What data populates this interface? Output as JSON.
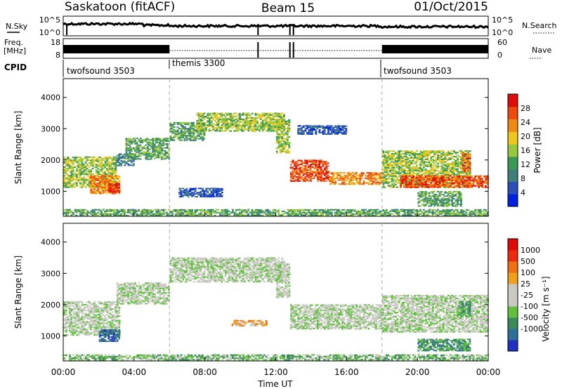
{
  "header": {
    "station": "Saskatoon (fitACF)",
    "beam": "Beam 15",
    "date": "01/Oct/2015"
  },
  "strip_nsky": {
    "left_label": "N.Sky",
    "right_label": "N.Search",
    "left_ticks": [
      "10^5",
      "10^0"
    ],
    "right_ticks": [
      "10^5",
      "10^0"
    ]
  },
  "strip_freq": {
    "left_label_1": "Freq.",
    "left_label_2": "[MHz]",
    "right_label": "Nave",
    "left_ticks": [
      "18",
      "8"
    ],
    "right_ticks": [
      "60",
      "0"
    ]
  },
  "cpid": {
    "label": "CPID",
    "segments": [
      {
        "name": "twofsound 3503",
        "start_hour": 0
      },
      {
        "name": "themis 3300",
        "start_hour": 6
      },
      {
        "name": "twofsound 3503",
        "start_hour": 18
      }
    ]
  },
  "chart_data": [
    {
      "type": "heatmap",
      "name": "power",
      "xlabel": "",
      "ylabel": "Slant Range [km]",
      "xlim": [
        0,
        24
      ],
      "ylim": [
        200,
        4600
      ],
      "yticks": [
        1000,
        2000,
        3000,
        4000
      ],
      "colorbar": {
        "label": "Power [dB]",
        "ticks": [
          "4",
          "8",
          "12",
          "16",
          "20",
          "24",
          "28"
        ],
        "colors": [
          "#0022e0",
          "#2a4fb8",
          "#3f7f7a",
          "#3a9a55",
          "#97c93c",
          "#f0c61a",
          "#f08a13",
          "#ee4a10",
          "#e00d08"
        ]
      },
      "bands": [
        {
          "x": [
            0.0,
            3.0
          ],
          "y": [
            1100,
            2100
          ],
          "level": 4
        },
        {
          "x": [
            1.5,
            3.2
          ],
          "y": [
            900,
            1500
          ],
          "level": 6
        },
        {
          "x": [
            2.5,
            3.2
          ],
          "y": [
            950,
            1250
          ],
          "level": 8
        },
        {
          "x": [
            3.0,
            4.0
          ],
          "y": [
            1800,
            2200
          ],
          "level": 2
        },
        {
          "x": [
            3.5,
            6.0
          ],
          "y": [
            2000,
            2700
          ],
          "level": 3
        },
        {
          "x": [
            6.0,
            8.0
          ],
          "y": [
            2600,
            3200
          ],
          "level": 3
        },
        {
          "x": [
            7.5,
            12.5
          ],
          "y": [
            2900,
            3500
          ],
          "level": 4
        },
        {
          "x": [
            12.0,
            12.8
          ],
          "y": [
            2200,
            3300
          ],
          "level": 4
        },
        {
          "x": [
            12.8,
            15.0
          ],
          "y": [
            1300,
            2000
          ],
          "level": 7
        },
        {
          "x": [
            15.0,
            18.0
          ],
          "y": [
            1200,
            1600
          ],
          "level": 6
        },
        {
          "x": [
            18.0,
            23.0
          ],
          "y": [
            1100,
            2300
          ],
          "level": 4
        },
        {
          "x": [
            19.0,
            24.0
          ],
          "y": [
            1100,
            1500
          ],
          "level": 7
        },
        {
          "x": [
            22.5,
            23.0
          ],
          "y": [
            1600,
            2200
          ],
          "level": 7
        },
        {
          "x": [
            20.0,
            22.5
          ],
          "y": [
            500,
            1000
          ],
          "level": 3
        },
        {
          "x": [
            6.5,
            9.0
          ],
          "y": [
            800,
            1100
          ],
          "level": 1
        },
        {
          "x": [
            13.2,
            16.0
          ],
          "y": [
            2800,
            3100
          ],
          "level": 1
        },
        {
          "x": [
            0.0,
            24.0
          ],
          "y": [
            200,
            420
          ],
          "level": 3
        }
      ]
    },
    {
      "type": "heatmap",
      "name": "velocity",
      "xlabel": "Time UT",
      "ylabel": "Slant Range [km]",
      "xlim": [
        0,
        24
      ],
      "ylim": [
        200,
        4600
      ],
      "yticks": [
        1000,
        2000,
        3000,
        4000
      ],
      "xticks": [
        "00:00",
        "04:00",
        "08:00",
        "12:00",
        "16:00",
        "20:00",
        "00:00"
      ],
      "colorbar": {
        "label": "Velocity [m s⁻¹]",
        "ticks": [
          "1000",
          "500",
          "100",
          "25",
          "-25",
          "-100",
          "-500",
          "-1000"
        ],
        "colors": [
          "#2030c0",
          "#2e6f9a",
          "#3a8a5a",
          "#5fc23a",
          "#c9c9c2",
          "#c9c9c2",
          "#f0a01a",
          "#f07010",
          "#ef2a0c",
          "#e00808"
        ]
      },
      "bands": [
        {
          "x": [
            0.0,
            3.2
          ],
          "y": [
            1000,
            2100
          ],
          "level": 4
        },
        {
          "x": [
            2.0,
            3.2
          ],
          "y": [
            800,
            1200
          ],
          "level": 1
        },
        {
          "x": [
            3.0,
            6.0
          ],
          "y": [
            2000,
            2700
          ],
          "level": 4
        },
        {
          "x": [
            6.0,
            12.5
          ],
          "y": [
            2700,
            3500
          ],
          "level": 4
        },
        {
          "x": [
            12.0,
            12.8
          ],
          "y": [
            2200,
            3300
          ],
          "level": 4
        },
        {
          "x": [
            12.8,
            18.0
          ],
          "y": [
            1200,
            2000
          ],
          "level": 4
        },
        {
          "x": [
            18.0,
            24.0
          ],
          "y": [
            1100,
            2300
          ],
          "level": 4
        },
        {
          "x": [
            9.5,
            11.5
          ],
          "y": [
            1300,
            1500
          ],
          "level": 6
        },
        {
          "x": [
            20.0,
            23.0
          ],
          "y": [
            500,
            900
          ],
          "level": 2
        },
        {
          "x": [
            22.3,
            23.0
          ],
          "y": [
            1600,
            2100
          ],
          "level": 2
        },
        {
          "x": [
            0.0,
            24.0
          ],
          "y": [
            200,
            400
          ],
          "level": 3
        }
      ]
    }
  ]
}
